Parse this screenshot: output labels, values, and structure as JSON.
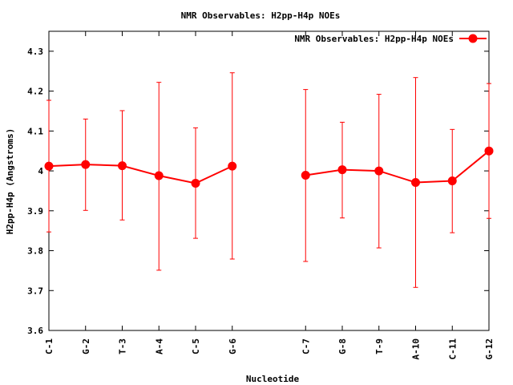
{
  "chart_data": {
    "type": "line",
    "title": "NMR Observables: H2pp-H4p NOEs",
    "xlabel": "Nucleotide",
    "ylabel": "H2pp-H4p (Angstroms)",
    "ylim": [
      3.6,
      4.35
    ],
    "yticks": [
      "3.6",
      "3.7",
      "3.8",
      "3.9",
      "4",
      "4.1",
      "4.2",
      "4.3"
    ],
    "ytick_values": [
      3.6,
      3.7,
      3.8,
      3.9,
      4.0,
      4.1,
      4.2,
      4.3
    ],
    "categories": [
      "C-1",
      "G-2",
      "T-3",
      "A-4",
      "C-5",
      "G-6",
      "C-7",
      "G-8",
      "T-9",
      "A-10",
      "C-11",
      "G-12"
    ],
    "x_index": [
      1,
      2,
      3,
      4,
      5,
      6,
      8,
      9,
      10,
      11,
      12,
      13
    ],
    "xlim": [
      1,
      13
    ],
    "legend_position": "top-right",
    "grid": false,
    "series": [
      {
        "name": "NMR Observables: H2pp-H4p NOEs",
        "color": "#ff0000",
        "segments": [
          [
            0,
            1,
            2,
            3,
            4,
            5
          ],
          [
            6,
            7,
            8,
            9,
            10,
            11
          ]
        ],
        "values": [
          4.012,
          4.016,
          4.013,
          3.988,
          3.969,
          4.012,
          3.989,
          4.003,
          4.0,
          3.971,
          3.975,
          4.05
        ],
        "err_low": [
          3.847,
          3.901,
          3.877,
          3.751,
          3.831,
          3.779,
          3.773,
          3.882,
          3.807,
          3.708,
          3.845,
          3.881
        ],
        "err_high": [
          4.177,
          4.13,
          4.151,
          4.222,
          4.108,
          4.246,
          4.204,
          4.122,
          4.192,
          4.234,
          4.104,
          4.219
        ]
      }
    ]
  }
}
